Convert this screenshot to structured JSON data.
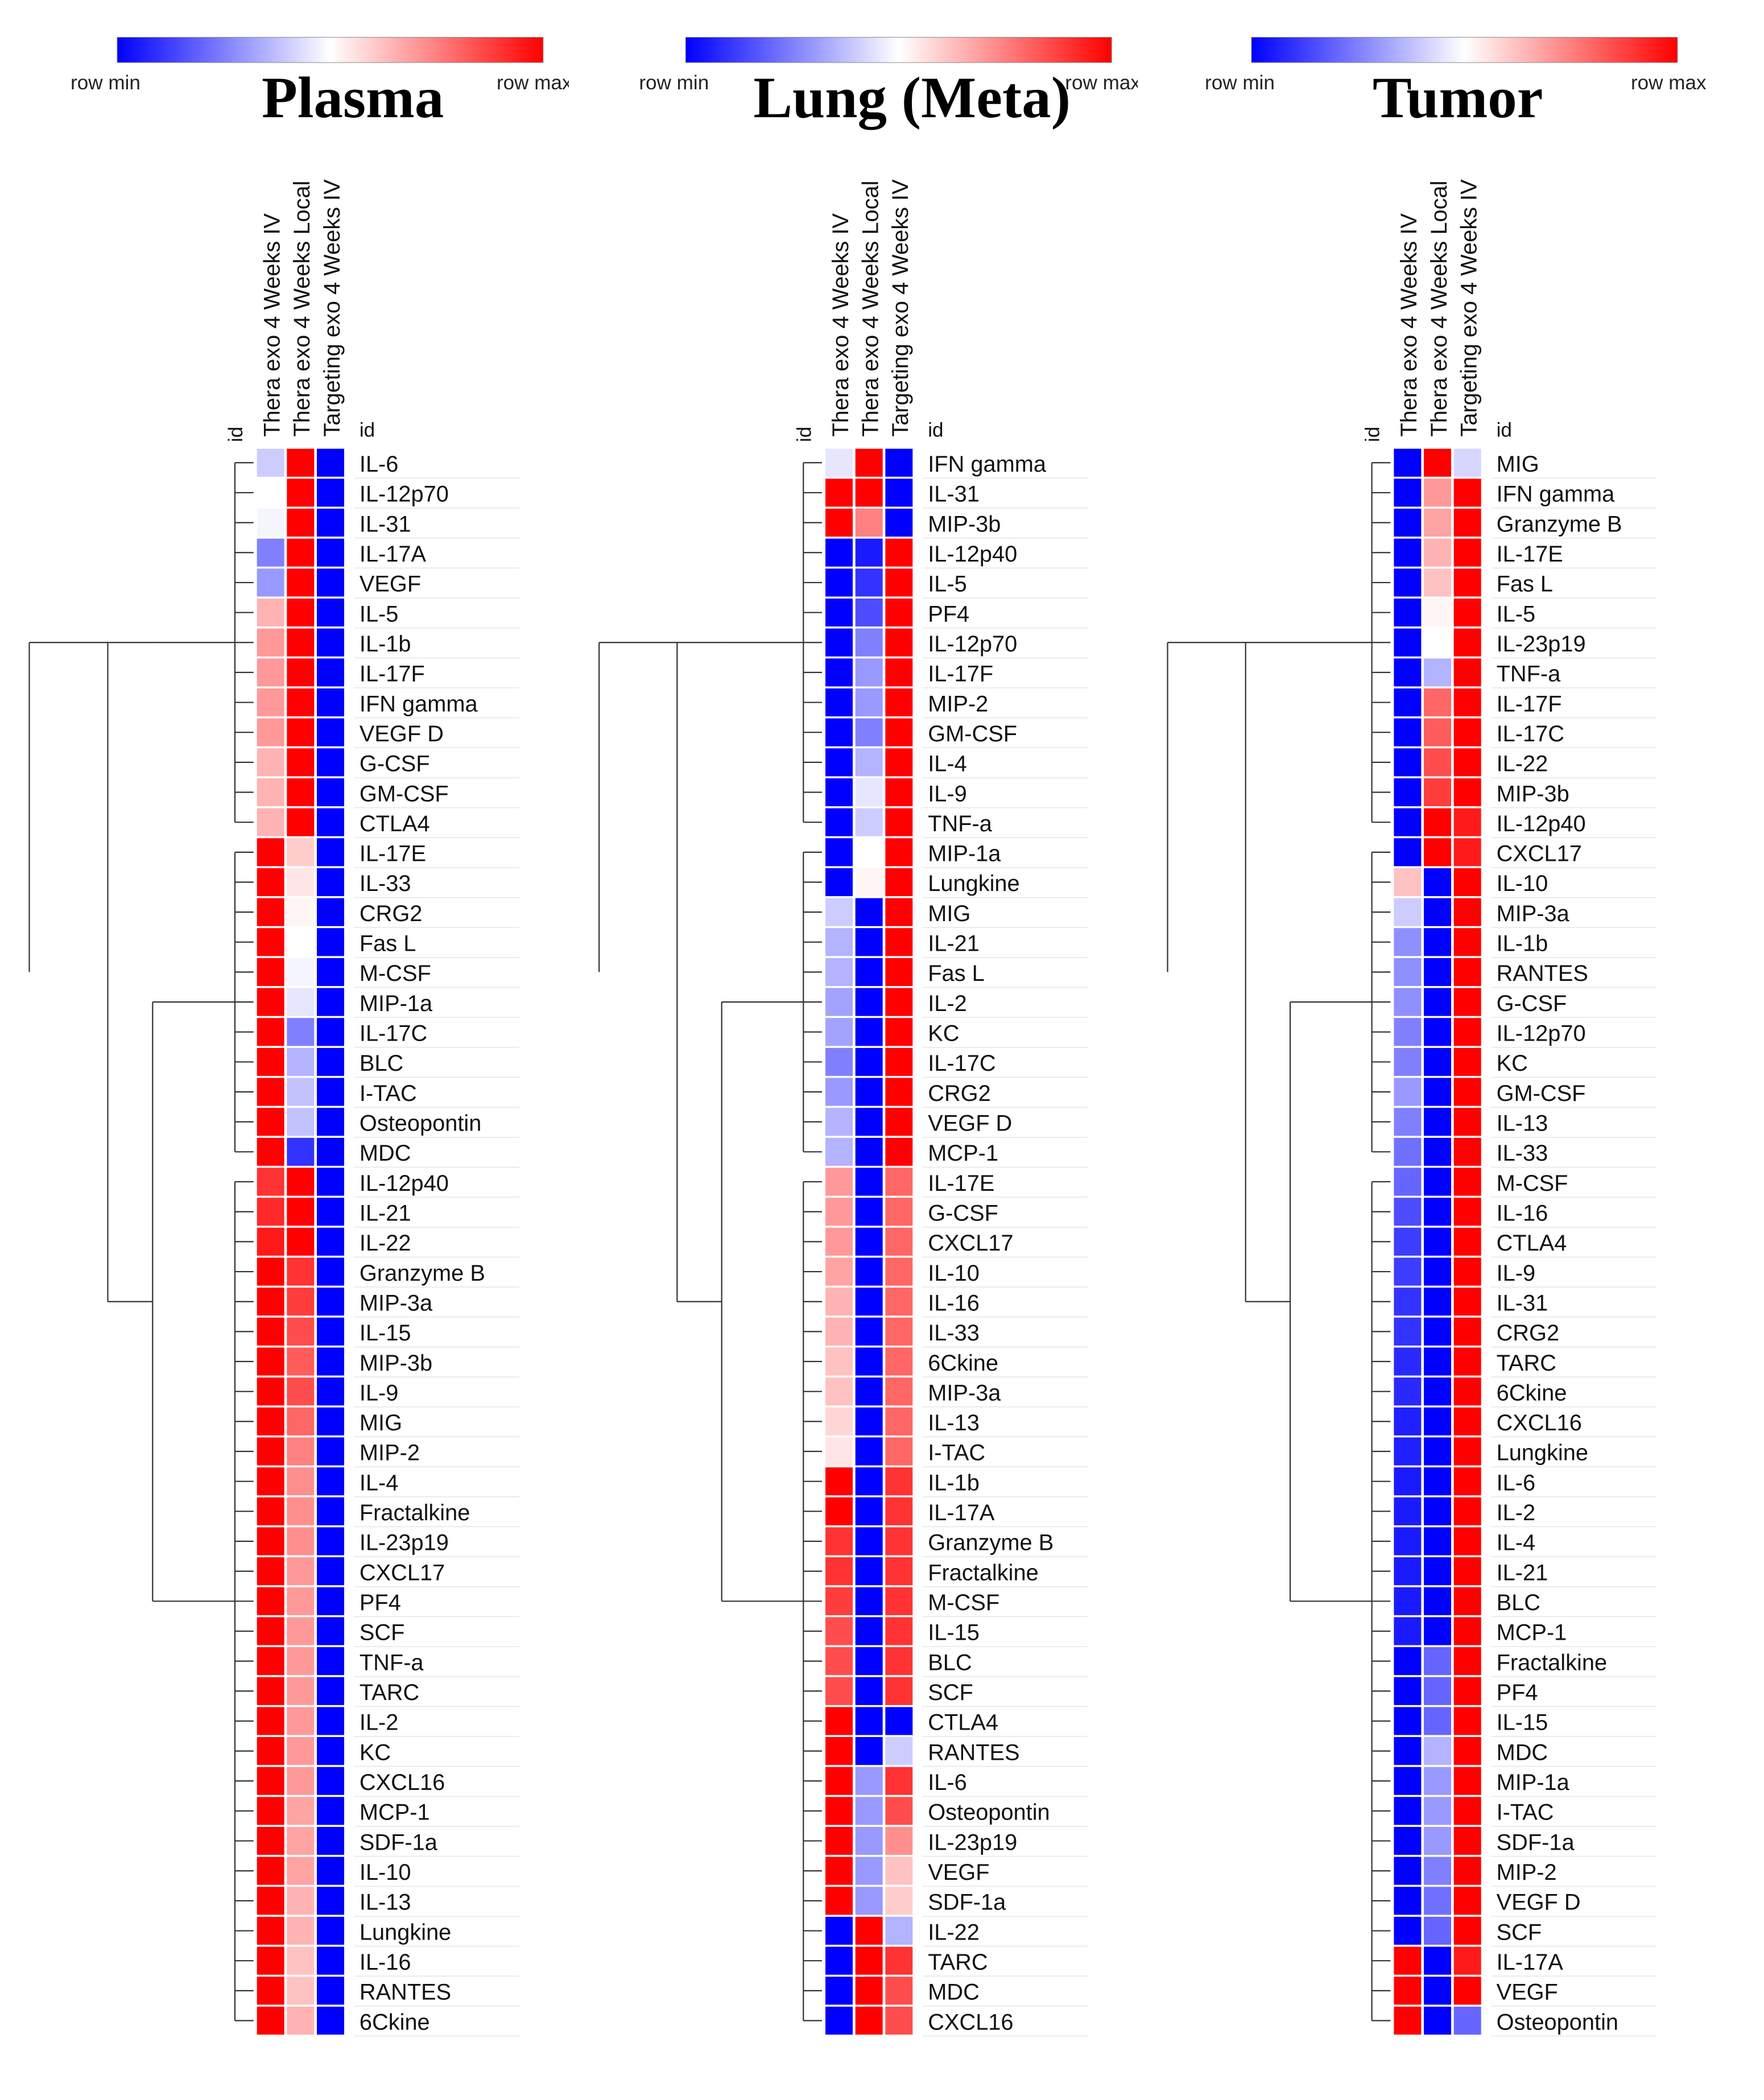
{
  "legend": {
    "min_label": "row  min",
    "max_label": "row  max",
    "colors": {
      "min": "#0000ff",
      "mid": "#ffffff",
      "max": "#ff0000"
    }
  },
  "chart_data": [
    {
      "type": "heatmap",
      "title": "Plasma",
      "id_label": "id",
      "columns": [
        "Thera exo 4 Weeks IV",
        "Thera exo 4 Weeks Local",
        "Targeting exo 4 Weeks IV"
      ],
      "scale": "row min to row max (0 = min, 1 = max)",
      "rows": [
        "IL-6",
        "IL-12p70",
        "IL-31",
        "IL-17A",
        "VEGF",
        "IL-5",
        "IL-1b",
        "IL-17F",
        "IFN gamma",
        "VEGF D",
        "G-CSF",
        "GM-CSF",
        "CTLA4",
        "IL-17E",
        "IL-33",
        "CRG2",
        "Fas L",
        "M-CSF",
        "MIP-1a",
        "IL-17C",
        "BLC",
        "I-TAC",
        "Osteopontin",
        "MDC",
        "IL-12p40",
        "IL-21",
        "IL-22",
        "Granzyme B",
        "MIP-3a",
        "IL-15",
        "MIP-3b",
        "IL-9",
        "MIG",
        "MIP-2",
        "IL-4",
        "Fractalkine",
        "IL-23p19",
        "CXCL17",
        "PF4",
        "SCF",
        "TNF-a",
        "TARC",
        "IL-2",
        "KC",
        "CXCL16",
        "MCP-1",
        "SDF-1a",
        "IL-10",
        "IL-13",
        "Lungkine",
        "IL-16",
        "RANTES",
        "6Ckine"
      ],
      "values": [
        [
          0.4,
          1,
          0
        ],
        [
          0.5,
          1,
          0
        ],
        [
          0.48,
          1,
          0
        ],
        [
          0.25,
          1,
          0
        ],
        [
          0.3,
          1,
          0
        ],
        [
          0.65,
          1,
          0
        ],
        [
          0.7,
          1,
          0
        ],
        [
          0.7,
          1,
          0
        ],
        [
          0.7,
          1,
          0
        ],
        [
          0.7,
          1,
          0
        ],
        [
          0.65,
          1,
          0
        ],
        [
          0.65,
          1,
          0
        ],
        [
          0.65,
          1,
          0
        ],
        [
          1,
          0.6,
          0
        ],
        [
          1,
          0.55,
          0
        ],
        [
          1,
          0.52,
          0
        ],
        [
          1,
          0.5,
          0
        ],
        [
          1,
          0.48,
          0
        ],
        [
          1,
          0.45,
          0
        ],
        [
          1,
          0.25,
          0
        ],
        [
          1,
          0.35,
          0
        ],
        [
          1,
          0.38,
          0
        ],
        [
          1,
          0.38,
          0
        ],
        [
          1,
          0.1,
          0
        ],
        [
          0.9,
          1,
          0
        ],
        [
          0.92,
          1,
          0
        ],
        [
          0.95,
          1,
          0
        ],
        [
          1,
          0.9,
          0
        ],
        [
          1,
          0.88,
          0
        ],
        [
          1,
          0.85,
          0
        ],
        [
          1,
          0.82,
          0
        ],
        [
          1,
          0.85,
          0
        ],
        [
          1,
          0.8,
          0
        ],
        [
          1,
          0.75,
          0
        ],
        [
          1,
          0.72,
          0
        ],
        [
          1,
          0.72,
          0
        ],
        [
          1,
          0.72,
          0
        ],
        [
          1,
          0.7,
          0
        ],
        [
          1,
          0.7,
          0
        ],
        [
          1,
          0.7,
          0
        ],
        [
          1,
          0.7,
          0
        ],
        [
          1,
          0.7,
          0
        ],
        [
          1,
          0.7,
          0
        ],
        [
          1,
          0.7,
          0
        ],
        [
          1,
          0.7,
          0
        ],
        [
          1,
          0.68,
          0
        ],
        [
          1,
          0.68,
          0
        ],
        [
          1,
          0.68,
          0
        ],
        [
          1,
          0.65,
          0
        ],
        [
          1,
          0.65,
          0
        ],
        [
          1,
          0.62,
          0
        ],
        [
          1,
          0.62,
          0
        ],
        [
          1,
          0.65,
          0
        ]
      ]
    },
    {
      "type": "heatmap",
      "title": "Lung (Meta)",
      "id_label": "id",
      "columns": [
        "Thera exo 4 Weeks IV",
        "Thera exo 4 Weeks Local",
        "Targeting exo 4 Weeks IV"
      ],
      "scale": "row min to row max (0 = min, 1 = max)",
      "rows": [
        "IFN gamma",
        "IL-31",
        "MIP-3b",
        "IL-12p40",
        "IL-5",
        "PF4",
        "IL-12p70",
        "IL-17F",
        "MIP-2",
        "GM-CSF",
        "IL-4",
        "IL-9",
        "TNF-a",
        "MIP-1a",
        "Lungkine",
        "MIG",
        "IL-21",
        "Fas L",
        "IL-2",
        "KC",
        "IL-17C",
        "CRG2",
        "VEGF D",
        "MCP-1",
        "IL-17E",
        "G-CSF",
        "CXCL17",
        "IL-10",
        "IL-16",
        "IL-33",
        "6Ckine",
        "MIP-3a",
        "IL-13",
        "I-TAC",
        "IL-1b",
        "IL-17A",
        "Granzyme B",
        "Fractalkine",
        "M-CSF",
        "IL-15",
        "BLC",
        "SCF",
        "CTLA4",
        "RANTES",
        "IL-6",
        "Osteopontin",
        "IL-23p19",
        "VEGF",
        "SDF-1a",
        "IL-22",
        "TARC",
        "MDC",
        "CXCL16"
      ],
      "values": [
        [
          0.45,
          1,
          0
        ],
        [
          1,
          1,
          0
        ],
        [
          1,
          0.75,
          0
        ],
        [
          0,
          0.05,
          1
        ],
        [
          0,
          0.1,
          1
        ],
        [
          0,
          0.15,
          1
        ],
        [
          0,
          0.25,
          1
        ],
        [
          0,
          0.3,
          1
        ],
        [
          0,
          0.3,
          1
        ],
        [
          0,
          0.25,
          1
        ],
        [
          0,
          0.35,
          1
        ],
        [
          0,
          0.45,
          1
        ],
        [
          0,
          0.4,
          1
        ],
        [
          0,
          0.5,
          1
        ],
        [
          0,
          0.52,
          1
        ],
        [
          0.4,
          0,
          1
        ],
        [
          0.35,
          0,
          1
        ],
        [
          0.35,
          0,
          1
        ],
        [
          0.32,
          0,
          1
        ],
        [
          0.32,
          0,
          1
        ],
        [
          0.25,
          0,
          1
        ],
        [
          0.3,
          0,
          1
        ],
        [
          0.35,
          0,
          1
        ],
        [
          0.35,
          0,
          1
        ],
        [
          0.7,
          0,
          0.8
        ],
        [
          0.7,
          0,
          0.8
        ],
        [
          0.7,
          0,
          0.8
        ],
        [
          0.68,
          0,
          0.8
        ],
        [
          0.65,
          0,
          0.8
        ],
        [
          0.65,
          0,
          0.8
        ],
        [
          0.62,
          0,
          0.8
        ],
        [
          0.62,
          0,
          0.8
        ],
        [
          0.58,
          0,
          0.8
        ],
        [
          0.55,
          0,
          0.8
        ],
        [
          1,
          0,
          0.9
        ],
        [
          1,
          0,
          0.9
        ],
        [
          0.9,
          0,
          0.9
        ],
        [
          0.9,
          0,
          0.9
        ],
        [
          0.88,
          0,
          0.9
        ],
        [
          0.85,
          0,
          0.9
        ],
        [
          0.85,
          0,
          0.9
        ],
        [
          0.85,
          0,
          0.9
        ],
        [
          1,
          0,
          0
        ],
        [
          1,
          0,
          0.4
        ],
        [
          1,
          0.3,
          0.9
        ],
        [
          1,
          0.3,
          0.85
        ],
        [
          1,
          0.3,
          0.72
        ],
        [
          1,
          0.3,
          0.62
        ],
        [
          1,
          0.3,
          0.6
        ],
        [
          0,
          1,
          0.35
        ],
        [
          0,
          1,
          0.9
        ],
        [
          0,
          1,
          0.85
        ],
        [
          0,
          1,
          0.85
        ]
      ]
    },
    {
      "type": "heatmap",
      "title": "Tumor",
      "id_label": "id",
      "columns": [
        "Thera exo 4 Weeks IV",
        "Thera exo 4 Weeks Local",
        "Targeting exo 4 Weeks IV"
      ],
      "scale": "row min to row max (0 = min, 1 = max)",
      "rows": [
        "MIG",
        "IFN gamma",
        "Granzyme B",
        "IL-17E",
        "Fas L",
        "IL-5",
        "IL-23p19",
        "TNF-a",
        "IL-17F",
        "IL-17C",
        "IL-22",
        "MIP-3b",
        "IL-12p40",
        "CXCL17",
        "IL-10",
        "MIP-3a",
        "IL-1b",
        "RANTES",
        "G-CSF",
        "IL-12p70",
        "KC",
        "GM-CSF",
        "IL-13",
        "IL-33",
        "M-CSF",
        "IL-16",
        "CTLA4",
        "IL-9",
        "IL-31",
        "CRG2",
        "TARC",
        "6Ckine",
        "CXCL16",
        "Lungkine",
        "IL-6",
        "IL-2",
        "IL-4",
        "IL-21",
        "BLC",
        "MCP-1",
        "Fractalkine",
        "PF4",
        "IL-15",
        "MDC",
        "MIP-1a",
        "I-TAC",
        "SDF-1a",
        "MIP-2",
        "VEGF D",
        "SCF",
        "IL-17A",
        "VEGF",
        "Osteopontin"
      ],
      "values": [
        [
          0,
          1,
          0.42
        ],
        [
          0,
          0.7,
          1
        ],
        [
          0,
          0.68,
          1
        ],
        [
          0,
          0.65,
          1
        ],
        [
          0,
          0.62,
          1
        ],
        [
          0,
          0.52,
          1
        ],
        [
          0,
          0.5,
          1
        ],
        [
          0,
          0.35,
          1
        ],
        [
          0,
          0.8,
          1
        ],
        [
          0,
          0.82,
          1
        ],
        [
          0,
          0.85,
          1
        ],
        [
          0,
          0.88,
          1
        ],
        [
          0,
          1,
          0.95
        ],
        [
          0,
          1,
          0.95
        ],
        [
          0.62,
          0,
          1
        ],
        [
          0.4,
          0,
          1
        ],
        [
          0.28,
          0,
          1
        ],
        [
          0.28,
          0,
          1
        ],
        [
          0.28,
          0,
          1
        ],
        [
          0.25,
          0,
          1
        ],
        [
          0.25,
          0,
          1
        ],
        [
          0.3,
          0,
          1
        ],
        [
          0.25,
          0,
          1
        ],
        [
          0.22,
          0,
          1
        ],
        [
          0.2,
          0,
          1
        ],
        [
          0.15,
          0,
          1
        ],
        [
          0.12,
          0,
          1
        ],
        [
          0.12,
          0,
          1
        ],
        [
          0.1,
          0,
          1
        ],
        [
          0.1,
          0,
          1
        ],
        [
          0.08,
          0,
          1
        ],
        [
          0.08,
          0,
          1
        ],
        [
          0.06,
          0,
          1
        ],
        [
          0.06,
          0,
          1
        ],
        [
          0.05,
          0,
          1
        ],
        [
          0.05,
          0,
          1
        ],
        [
          0.05,
          0,
          1
        ],
        [
          0.05,
          0,
          1
        ],
        [
          0.05,
          0,
          1
        ],
        [
          0.05,
          0,
          1
        ],
        [
          0,
          0.2,
          1
        ],
        [
          0,
          0.2,
          1
        ],
        [
          0,
          0.2,
          1
        ],
        [
          0,
          0.35,
          1
        ],
        [
          0,
          0.3,
          1
        ],
        [
          0,
          0.3,
          1
        ],
        [
          0,
          0.3,
          1
        ],
        [
          0,
          0.25,
          1
        ],
        [
          0,
          0.22,
          1
        ],
        [
          0,
          0.2,
          1
        ],
        [
          1,
          0,
          0.95
        ],
        [
          1,
          0,
          1
        ],
        [
          1,
          0,
          0.2
        ]
      ]
    }
  ]
}
